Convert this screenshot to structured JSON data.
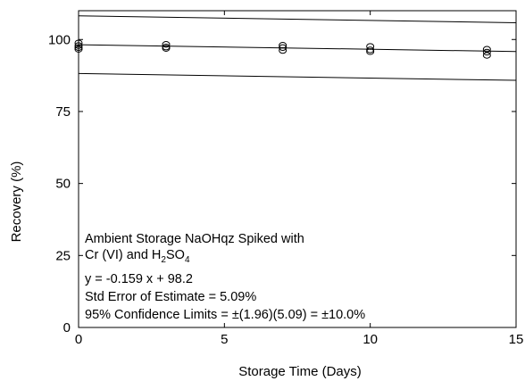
{
  "chart_data": {
    "type": "scatter",
    "title": "",
    "xlabel": "Storage Time (Days)",
    "ylabel": "Recovery (%)",
    "xlim": [
      0,
      15
    ],
    "ylim": [
      0,
      110
    ],
    "x_ticks": [
      0,
      5,
      10,
      15
    ],
    "x_tick_labels": [
      "0",
      "5",
      "10",
      "15"
    ],
    "y_ticks": [
      0,
      25,
      50,
      75,
      100
    ],
    "y_tick_labels": [
      "0",
      "25",
      "50",
      "75",
      "100"
    ],
    "grid": false,
    "legend": "none",
    "marker": "open-circle",
    "points": [
      {
        "x": 0,
        "y": 98.8
      },
      {
        "x": 0,
        "y": 97.9
      },
      {
        "x": 0,
        "y": 97.2
      },
      {
        "x": 0,
        "y": 96.6
      },
      {
        "x": 3,
        "y": 98.3
      },
      {
        "x": 3,
        "y": 97.4
      },
      {
        "x": 3,
        "y": 96.9
      },
      {
        "x": 7,
        "y": 98.0
      },
      {
        "x": 7,
        "y": 97.2
      },
      {
        "x": 7,
        "y": 96.2
      },
      {
        "x": 10,
        "y": 97.6
      },
      {
        "x": 10,
        "y": 96.4
      },
      {
        "x": 10,
        "y": 95.8
      },
      {
        "x": 14,
        "y": 96.6
      },
      {
        "x": 14,
        "y": 95.6
      },
      {
        "x": 14,
        "y": 94.5
      }
    ],
    "fit_line": {
      "slope": -0.159,
      "intercept": 98.2
    },
    "confidence_offset": 10.0,
    "annotation": {
      "line1": "Ambient Storage NaOHqz Spiked with",
      "line2_pre": "Cr (VI) and H",
      "line2_sub1": "2",
      "line2_mid": "SO",
      "line2_sub2": "4",
      "line3": "y = -0.159 x + 98.2",
      "line4": "Std Error of Estimate = 5.09%",
      "line5": "95% Confidence Limits = ±(1.96)(5.09) = ±10.0%"
    }
  }
}
